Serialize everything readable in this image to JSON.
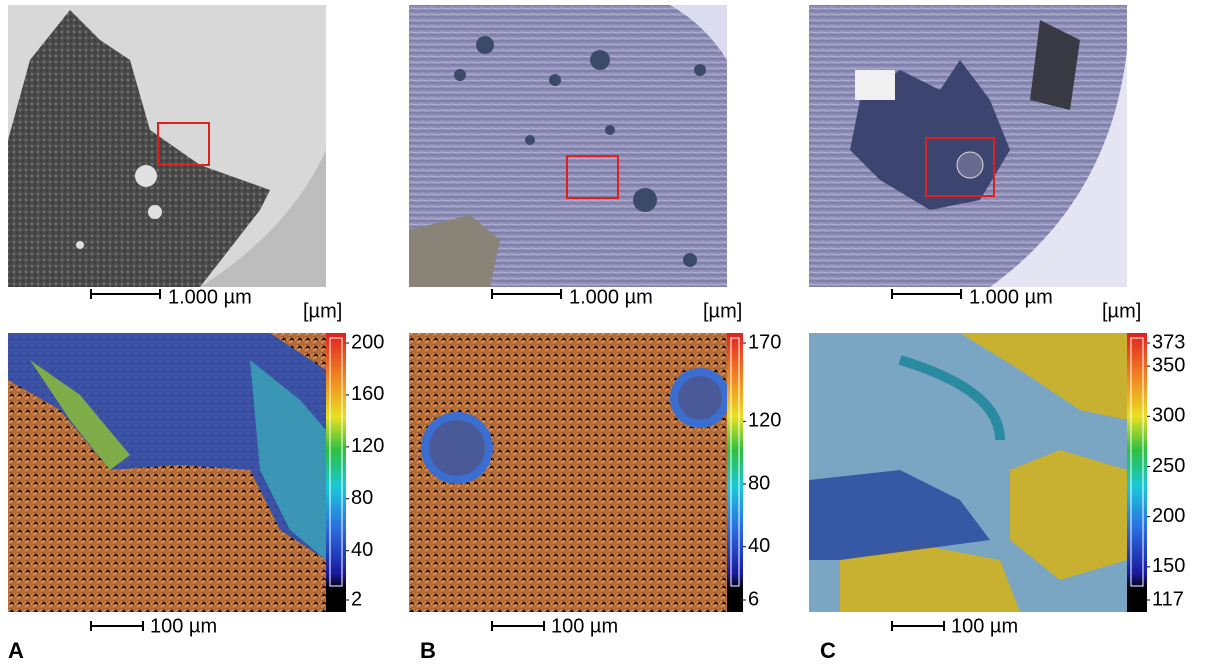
{
  "panels": [
    {
      "label": "A",
      "top_scale": "1.000 µm",
      "bottom_scale": "100 µm",
      "unit": "[µm]",
      "colorbar_ticks": [
        200,
        160,
        120,
        80,
        40,
        2
      ]
    },
    {
      "label": "B",
      "top_scale": "1.000 µm",
      "bottom_scale": "100 µm",
      "unit": "[µm]",
      "colorbar_ticks": [
        170,
        120,
        80,
        40,
        6
      ]
    },
    {
      "label": "C",
      "top_scale": "1.000 µm",
      "bottom_scale": "100 µm",
      "unit": "[µm]",
      "colorbar_ticks": [
        373,
        350,
        300,
        250,
        200,
        150,
        117
      ]
    }
  ]
}
